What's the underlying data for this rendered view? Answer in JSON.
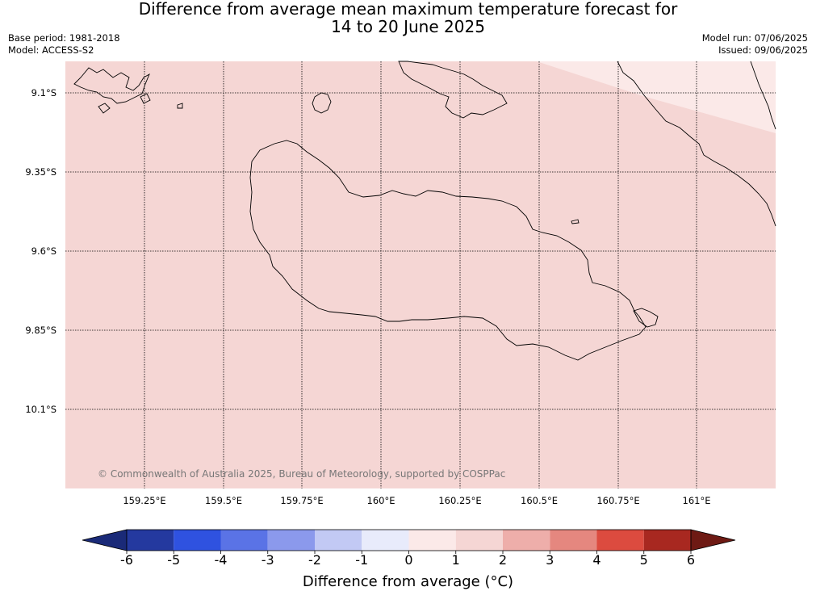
{
  "title": {
    "line1": "Difference from average mean maximum temperature forecast for",
    "line2": "14 to 20 June 2025"
  },
  "meta": {
    "base_period": "Base period: 1981-2018",
    "model": "Model: ACCESS-S2",
    "model_run": "Model run: 07/06/2025",
    "issued": "Issued: 09/06/2025"
  },
  "map": {
    "background_color": "#f5d6d4",
    "lighter_region_color": "#fbe9e8",
    "lat_labels": [
      "9.1°S",
      "9.35°S",
      "9.6°S",
      "9.85°S",
      "10.1°S"
    ],
    "lon_labels": [
      "159.25°E",
      "159.5°E",
      "159.75°E",
      "160°E",
      "160.25°E",
      "160.5°E",
      "160.75°E",
      "161°E"
    ],
    "copyright": "© Commonwealth of Australia 2025, Bureau of Meteorology, supported by COSPPac"
  },
  "colorbar": {
    "ticks": [
      "-6",
      "-5",
      "-4",
      "-3",
      "-2",
      "-1",
      "0",
      "1",
      "2",
      "3",
      "4",
      "5",
      "6"
    ],
    "colors": [
      "#24399f",
      "#2f52e0",
      "#5a73e6",
      "#8b99ec",
      "#c2c9f4",
      "#e8ebfb",
      "#fbe9e8",
      "#f5d6d4",
      "#eeaeaa",
      "#e5877f",
      "#dc4b3f",
      "#a82820"
    ],
    "under_color": "#1a2a78",
    "over_color": "#6e1a14",
    "label": "Difference from average (°C)"
  }
}
